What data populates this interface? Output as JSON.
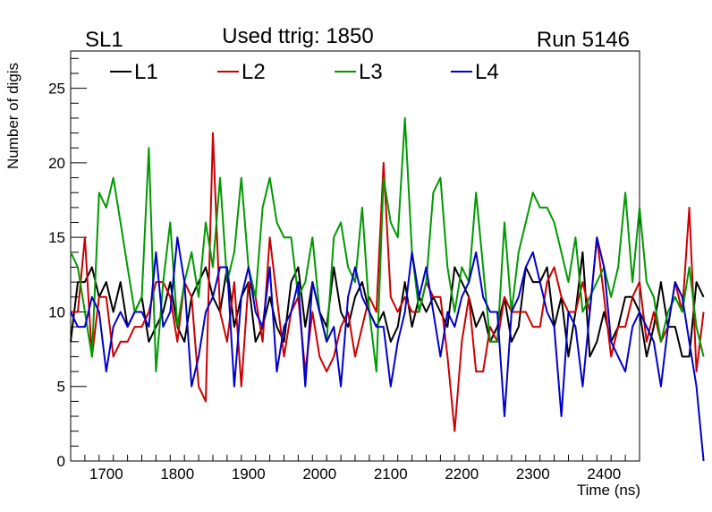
{
  "chart_data": {
    "type": "line",
    "title": "Used ttrig: 1850",
    "left_label": "SL1",
    "right_label": "Run 5146",
    "xlabel": "Time (ns)",
    "ylabel": "Number of digis",
    "xlim": [
      1650,
      2450
    ],
    "ylim": [
      0,
      27.5
    ],
    "x_ticks": [
      1700,
      1800,
      1900,
      2000,
      2100,
      2200,
      2300,
      2400
    ],
    "x_tick_labels": [
      "1700",
      "1800",
      "1900",
      "2000",
      "2100",
      "2200",
      "2300",
      "2400"
    ],
    "y_ticks": [
      0,
      5,
      10,
      15,
      20,
      25
    ],
    "y_tick_labels": [
      "0",
      "5",
      "10",
      "15",
      "20",
      "25"
    ],
    "x_start": 1650,
    "x_step": 10,
    "series": [
      {
        "name": "L1",
        "color": "#000000",
        "values": [
          8,
          12,
          12,
          13,
          11,
          12,
          10,
          12,
          9,
          10,
          11,
          8,
          9,
          10,
          12,
          9,
          8,
          11,
          12,
          13,
          11,
          10,
          13,
          9,
          11,
          12,
          8,
          9,
          11,
          9,
          8,
          12,
          13,
          9,
          12,
          10,
          9,
          13,
          10,
          9,
          11,
          12,
          10,
          9,
          10,
          8,
          9,
          12,
          9,
          11,
          10,
          11,
          10,
          9,
          13,
          12,
          11,
          9,
          10,
          8,
          9,
          11,
          8,
          9,
          13,
          12,
          12,
          13,
          9,
          11,
          7,
          10,
          14,
          7,
          8,
          10,
          8,
          9,
          11,
          11,
          10,
          7,
          9,
          12,
          9,
          9,
          7,
          7,
          12,
          11
        ]
      },
      {
        "name": "L2",
        "color": "#cc0000",
        "values": [
          10,
          10,
          15,
          7,
          11,
          11,
          7,
          8,
          8,
          9,
          9,
          10,
          12,
          12,
          11,
          8,
          12,
          11,
          5,
          4,
          22,
          10,
          8,
          12,
          5,
          12,
          11,
          8,
          15,
          11,
          7,
          10,
          11,
          6,
          10,
          7,
          6,
          7,
          9,
          10,
          7,
          9,
          11,
          10,
          20,
          11,
          10,
          11,
          10,
          10,
          12,
          11,
          11,
          7,
          2,
          8,
          11,
          6,
          6,
          9,
          8,
          11,
          10,
          10,
          10,
          9,
          9,
          12,
          13,
          11,
          10,
          10,
          12,
          10,
          15,
          11,
          7,
          9,
          9,
          11,
          12,
          8,
          10,
          8,
          9,
          12,
          10,
          17,
          6,
          10
        ]
      },
      {
        "name": "L3",
        "color": "#009900",
        "values": [
          14,
          13,
          10,
          7,
          18,
          17,
          19,
          16,
          13,
          10,
          11,
          21,
          6,
          12,
          16,
          9,
          12,
          14,
          11,
          16,
          13,
          19,
          12,
          14,
          19,
          13,
          11,
          17,
          19,
          16,
          15,
          15,
          11,
          12,
          15,
          10,
          8,
          15,
          16,
          13,
          12,
          17,
          10,
          6,
          19,
          16,
          15,
          23,
          14,
          10,
          12,
          18,
          19,
          13,
          10,
          13,
          12,
          18,
          13,
          8,
          8,
          16,
          10,
          14,
          16,
          18,
          17,
          17,
          16,
          14,
          12,
          15,
          10,
          11,
          12,
          13,
          11,
          13,
          18,
          12,
          17,
          12,
          11,
          8,
          10,
          11,
          10,
          13,
          9,
          7
        ]
      },
      {
        "name": "L4",
        "color": "#0000cc",
        "values": [
          10,
          9,
          9,
          11,
          10,
          6,
          9,
          10,
          9,
          10,
          10,
          9,
          14,
          9,
          10,
          15,
          12,
          5,
          7,
          10,
          11,
          13,
          13,
          5,
          11,
          13,
          10,
          9,
          13,
          6,
          9,
          10,
          12,
          5,
          12,
          10,
          8,
          9,
          5,
          11,
          13,
          11,
          10,
          9,
          9,
          5,
          8,
          10,
          14,
          11,
          13,
          10,
          7,
          10,
          9,
          11,
          12,
          14,
          11,
          10,
          10,
          3,
          10,
          11,
          13,
          14,
          12,
          10,
          9,
          3,
          10,
          9,
          5,
          10,
          15,
          13,
          8,
          7,
          6,
          9,
          10,
          9,
          8,
          5,
          9,
          12,
          11,
          8,
          5,
          0
        ]
      }
    ]
  }
}
